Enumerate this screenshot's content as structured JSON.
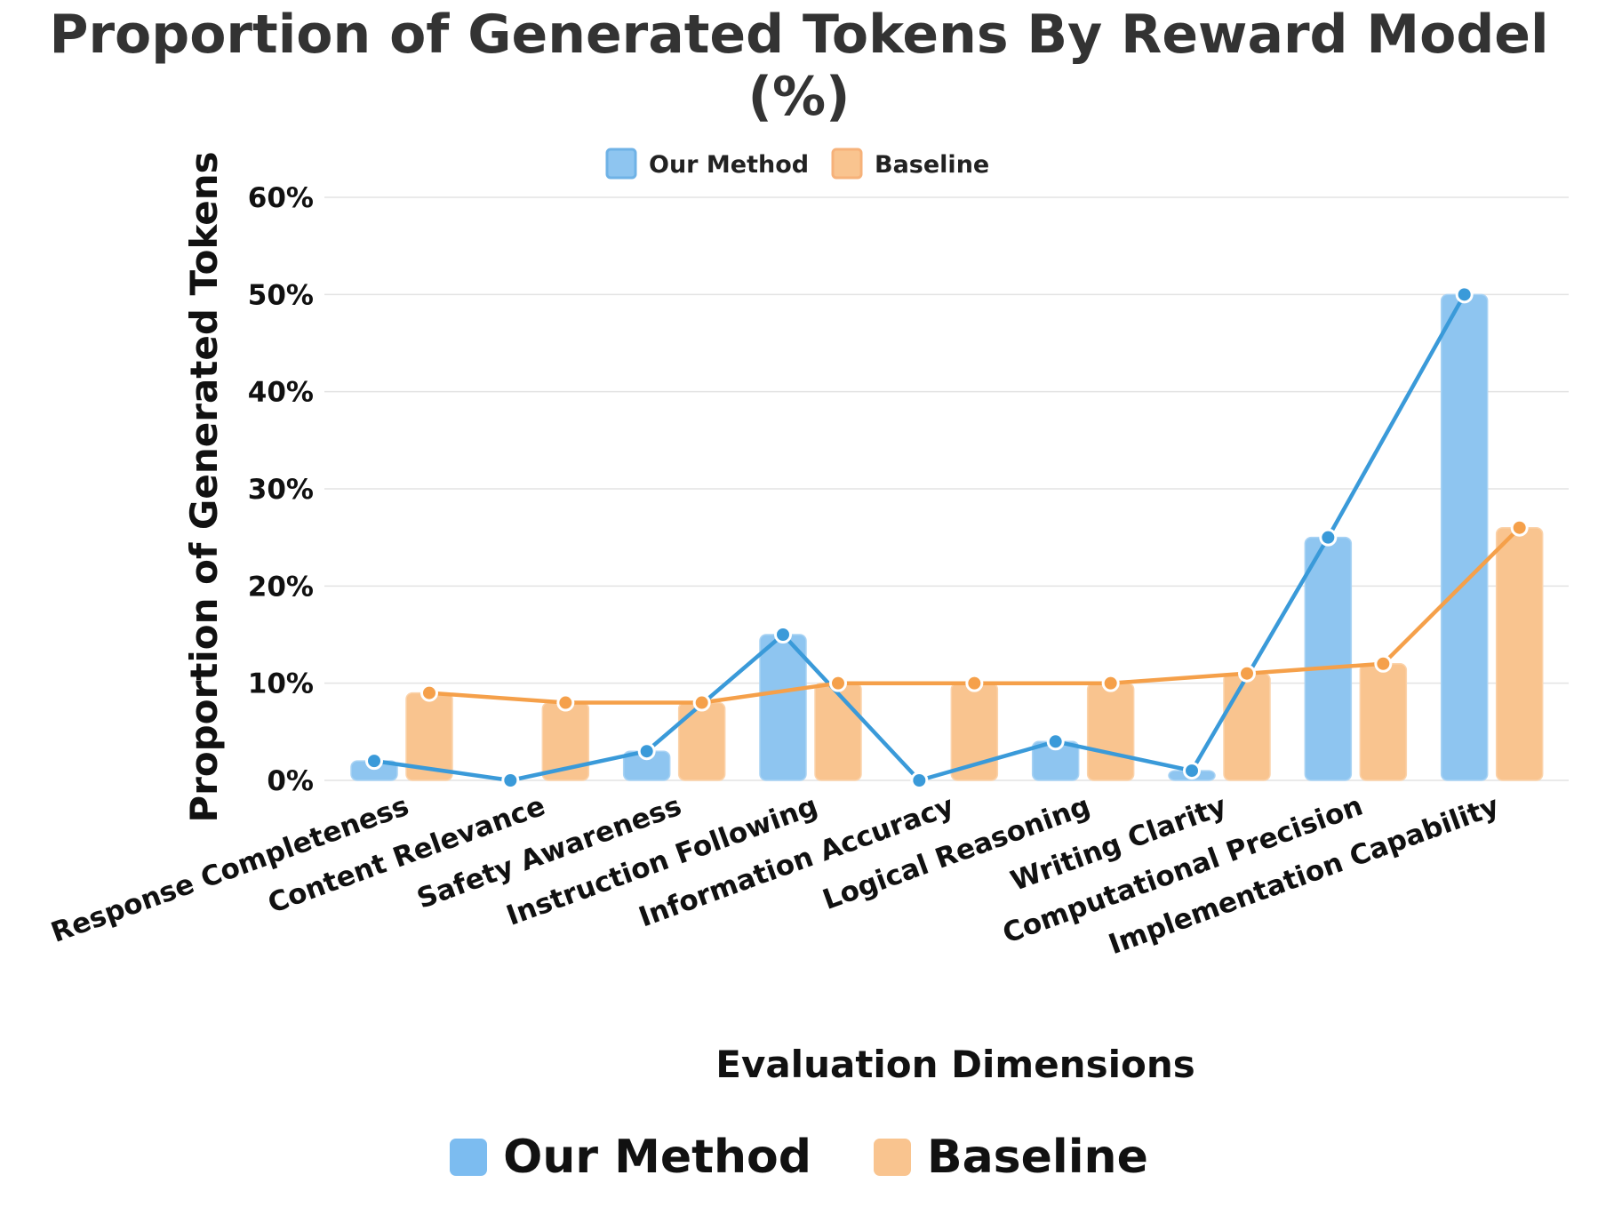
{
  "chart_data": {
    "type": "bar",
    "title": "Proportion of Generated Tokens By Reward Model (%)",
    "xlabel": "Evaluation Dimensions",
    "ylabel": "Proportion of Generated Tokens",
    "ylim": [
      0,
      60
    ],
    "yticks": [
      "0%",
      "10%",
      "20%",
      "30%",
      "40%",
      "50%",
      "60%"
    ],
    "ytick_values": [
      0,
      10,
      20,
      30,
      40,
      50,
      60
    ],
    "grid": true,
    "legend_placement": "top-center and bottom-center",
    "line_overlay": true,
    "categories": [
      "Response Completeness",
      "Content Relevance",
      "Safety Awareness",
      "Instruction Following",
      "Information Accuracy",
      "Logical Reasoning",
      "Writing Clarity",
      "Computational Precision",
      "Implementation Capability"
    ],
    "series": [
      {
        "name": "Our Method",
        "color": "#8ec5f0",
        "line_color": "#3a9ad9",
        "values": [
          2,
          0,
          3,
          15,
          0,
          4,
          1,
          25,
          50
        ]
      },
      {
        "name": "Baseline",
        "color": "#f9c48f",
        "line_color": "#f5a04a",
        "values": [
          9,
          8,
          8,
          10,
          10,
          10,
          11,
          12,
          26
        ]
      }
    ]
  },
  "legend": {
    "top": [
      {
        "label": "Our Method",
        "color": "#8ec5f0"
      },
      {
        "label": "Baseline",
        "color": "#f9c48f"
      }
    ],
    "bottom": [
      {
        "label": "Our Method",
        "color": "#7cbcf0"
      },
      {
        "label": "Baseline",
        "color": "#f9c48f"
      }
    ]
  }
}
